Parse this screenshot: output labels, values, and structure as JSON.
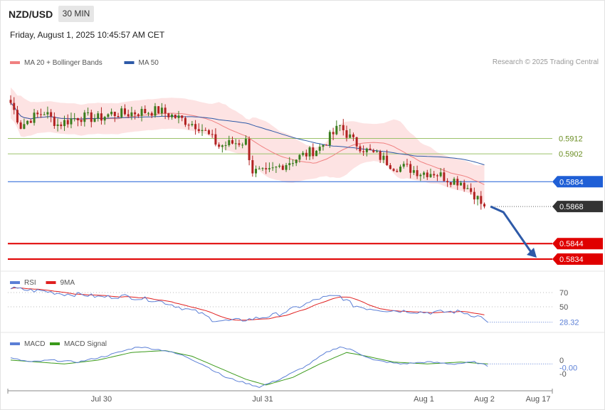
{
  "header": {
    "symbol": "NZD/USD",
    "timeframe": "30 MIN",
    "datetime": "Friday, August 1, 2025 10:45:57 AM CET"
  },
  "copyright": "Research © 2025 Trading Central",
  "legend_price": [
    {
      "label": "MA 20 + Bollinger Bands",
      "color": "#f08080"
    },
    {
      "label": "MA 50",
      "color": "#2e5aa8"
    }
  ],
  "legend_rsi": [
    {
      "label": "RSI",
      "color": "#5b7fd6"
    },
    {
      "label": "9MA",
      "color": "#e02020"
    }
  ],
  "legend_macd": [
    {
      "label": "MACD",
      "color": "#5b7fd6"
    },
    {
      "label": "MACD Signal",
      "color": "#3a9a1a"
    }
  ],
  "x_axis": {
    "labels": [
      {
        "label": "Jul 30",
        "bar": 27
      },
      {
        "label": "Jul 31",
        "bar": 75
      },
      {
        "label": "Aug 1",
        "bar": 123
      },
      {
        "label": "Aug 2",
        "bar": 141
      },
      {
        "label": "Aug 17",
        "bar": 157
      }
    ]
  },
  "colors": {
    "bull": "#3a7d1e",
    "bear": "#b22222",
    "resistance": "#9cc26b",
    "pivot": "#1f5fd6",
    "support": "#e00000",
    "current": "#333333",
    "arrow": "#2e5aa8",
    "band": "#fde3e3"
  },
  "chart_data": [
    {
      "type": "line",
      "panel": "price",
      "ylim": [
        0.5828,
        0.5955
      ],
      "levels": [
        {
          "value": 0.5912,
          "label": "0.5912",
          "kind": "resistance"
        },
        {
          "value": 0.5902,
          "label": "0.5902",
          "kind": "resistance"
        },
        {
          "value": 0.5884,
          "label": "0.5884",
          "kind": "pivot"
        },
        {
          "value": 0.5868,
          "label": "0.5868",
          "kind": "current"
        },
        {
          "value": 0.5844,
          "label": "0.5844",
          "kind": "support"
        },
        {
          "value": 0.5834,
          "label": "0.5834",
          "kind": "support"
        }
      ],
      "close_anchors": [
        [
          0,
          0.5935
        ],
        [
          3,
          0.592
        ],
        [
          6,
          0.5925
        ],
        [
          10,
          0.5929
        ],
        [
          14,
          0.5921
        ],
        [
          20,
          0.5926
        ],
        [
          26,
          0.5925
        ],
        [
          30,
          0.5928
        ],
        [
          34,
          0.5928
        ],
        [
          38,
          0.5929
        ],
        [
          44,
          0.593
        ],
        [
          50,
          0.5925
        ],
        [
          56,
          0.592
        ],
        [
          58,
          0.5916
        ],
        [
          62,
          0.5907
        ],
        [
          66,
          0.5909
        ],
        [
          70,
          0.591
        ],
        [
          72,
          0.5891
        ],
        [
          76,
          0.5889
        ],
        [
          80,
          0.5894
        ],
        [
          86,
          0.59
        ],
        [
          92,
          0.5906
        ],
        [
          96,
          0.5915
        ],
        [
          98,
          0.592
        ],
        [
          102,
          0.591
        ],
        [
          106,
          0.5904
        ],
        [
          110,
          0.59
        ],
        [
          114,
          0.5894
        ],
        [
          118,
          0.5893
        ],
        [
          122,
          0.589
        ],
        [
          126,
          0.589
        ],
        [
          130,
          0.5886
        ],
        [
          134,
          0.5884
        ],
        [
          136,
          0.588
        ],
        [
          138,
          0.5876
        ],
        [
          140,
          0.587
        ],
        [
          141,
          0.5868
        ]
      ],
      "forecast": {
        "from": [
          142,
          0.5868
        ],
        "to": [
          157,
          0.5834
        ]
      }
    },
    {
      "type": "line",
      "panel": "rsi",
      "ylim": [
        20,
        80
      ],
      "levels": [
        {
          "value": 70,
          "label": "70"
        },
        {
          "value": 50,
          "label": "50"
        }
      ],
      "last": {
        "value": 28.32,
        "label": "28.32"
      },
      "rsi_anchors": [
        [
          0,
          76
        ],
        [
          6,
          73
        ],
        [
          10,
          72
        ],
        [
          16,
          68
        ],
        [
          22,
          67
        ],
        [
          26,
          64
        ],
        [
          30,
          64
        ],
        [
          34,
          65
        ],
        [
          38,
          62
        ],
        [
          42,
          60
        ],
        [
          46,
          56
        ],
        [
          52,
          47
        ],
        [
          56,
          42
        ],
        [
          60,
          32
        ],
        [
          64,
          30
        ],
        [
          68,
          31
        ],
        [
          72,
          33
        ],
        [
          76,
          36
        ],
        [
          80,
          40
        ],
        [
          84,
          47
        ],
        [
          88,
          54
        ],
        [
          92,
          62
        ],
        [
          95,
          64
        ],
        [
          98,
          65
        ],
        [
          102,
          52
        ],
        [
          106,
          48
        ],
        [
          112,
          45
        ],
        [
          118,
          44
        ],
        [
          124,
          42
        ],
        [
          130,
          43
        ],
        [
          134,
          43
        ],
        [
          138,
          38
        ],
        [
          141,
          34
        ],
        [
          142,
          28.32
        ]
      ]
    },
    {
      "type": "line",
      "panel": "macd",
      "ylim": [
        -0.0016,
        0.001
      ],
      "ticks": [
        {
          "value": 0.0,
          "label": "0"
        },
        {
          "value": -0.0004,
          "label": "-0.00"
        },
        {
          "value": -0.0007,
          "label": "-0"
        }
      ],
      "macd_anchors": [
        [
          0,
          0.0001
        ],
        [
          6,
          -0.0001
        ],
        [
          12,
          0.0
        ],
        [
          20,
          -0.0001
        ],
        [
          28,
          0.0002
        ],
        [
          38,
          0.0007
        ],
        [
          46,
          0.0005
        ],
        [
          52,
          0.0002
        ],
        [
          58,
          -0.0003
        ],
        [
          64,
          -0.0009
        ],
        [
          70,
          -0.0012
        ],
        [
          74,
          -0.0014
        ],
        [
          80,
          -0.001
        ],
        [
          88,
          -0.0003
        ],
        [
          94,
          0.0004
        ],
        [
          98,
          0.0007
        ],
        [
          102,
          0.0005
        ],
        [
          108,
          0.0
        ],
        [
          116,
          -0.0002
        ],
        [
          124,
          -0.0001
        ],
        [
          132,
          -0.0002
        ],
        [
          138,
          -0.0001
        ],
        [
          142,
          -0.0003
        ]
      ],
      "signal_anchors": [
        [
          0,
          0.0
        ],
        [
          8,
          -0.0001
        ],
        [
          16,
          -0.0002
        ],
        [
          26,
          0.0
        ],
        [
          36,
          0.0004
        ],
        [
          46,
          0.0005
        ],
        [
          54,
          0.0002
        ],
        [
          62,
          -0.0004
        ],
        [
          70,
          -0.001
        ],
        [
          76,
          -0.0013
        ],
        [
          84,
          -0.0009
        ],
        [
          92,
          -0.0002
        ],
        [
          100,
          0.0004
        ],
        [
          106,
          0.0002
        ],
        [
          114,
          -0.0001
        ],
        [
          124,
          -0.0002
        ],
        [
          134,
          -0.0001
        ],
        [
          142,
          -0.0002
        ]
      ]
    }
  ]
}
